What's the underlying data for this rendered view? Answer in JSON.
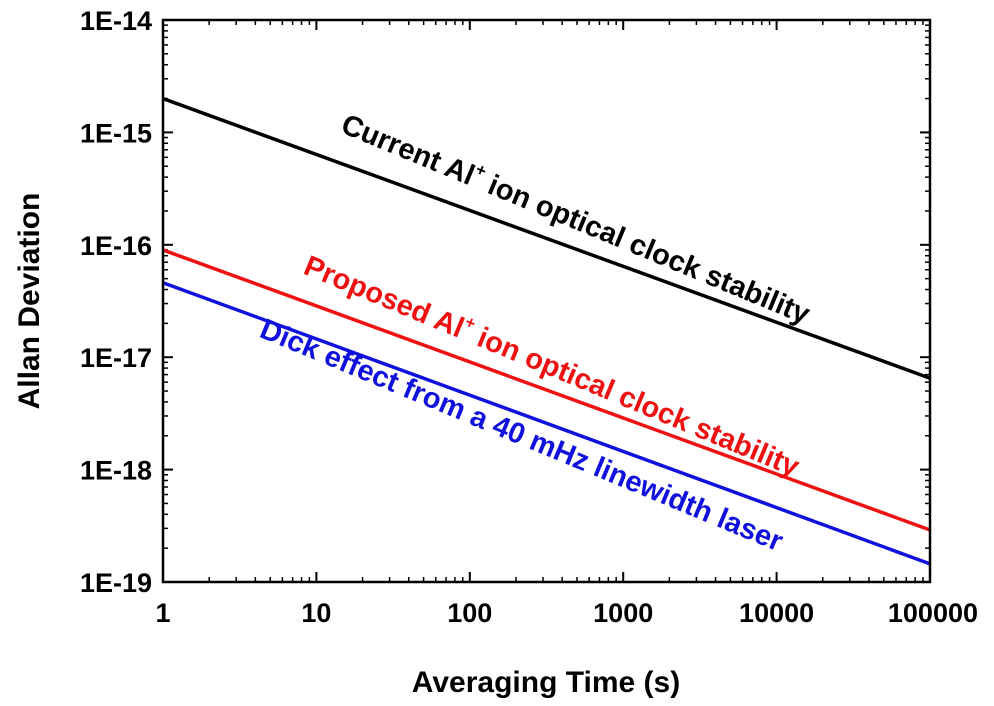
{
  "chart_data": {
    "type": "line",
    "title": "",
    "xlabel": "Averaging Time (s)",
    "ylabel": "Allan Deviation",
    "xscale": "log",
    "yscale": "log",
    "xlim": [
      1,
      100000
    ],
    "ylim": [
      1e-19,
      1e-14
    ],
    "x_ticks": [
      1,
      10,
      100,
      1000,
      10000,
      100000
    ],
    "x_tick_labels": [
      "1",
      "10",
      "100",
      "1000",
      "10000",
      "100000"
    ],
    "y_ticks": [
      1e-19,
      1e-18,
      1e-17,
      1e-16,
      1e-15,
      1e-14
    ],
    "y_tick_labels": [
      "1E-19",
      "1E-18",
      "1E-17",
      "1E-16",
      "1E-15",
      "1E-14"
    ],
    "grid": false,
    "legend": "none",
    "series": [
      {
        "label": {
          "prefix": "Current Al",
          "sup": "+",
          "suffix": " ion optical clock stability"
        },
        "color": "#000000",
        "x": [
          1,
          100000
        ],
        "y": [
          2e-15,
          6.5e-18
        ]
      },
      {
        "label": {
          "prefix": "Proposed Al",
          "sup": "+",
          "suffix": " ion optical clock stability"
        },
        "color": "#ee1111",
        "x": [
          1,
          100000
        ],
        "y": [
          9e-17,
          2.9e-19
        ]
      },
      {
        "label": {
          "prefix": "Dick effect from a 40 mHz linewidth laser",
          "sup": "",
          "suffix": ""
        },
        "color": "#1111dd",
        "x": [
          1,
          100000
        ],
        "y": [
          4.6e-17,
          1.45e-19
        ]
      }
    ]
  }
}
